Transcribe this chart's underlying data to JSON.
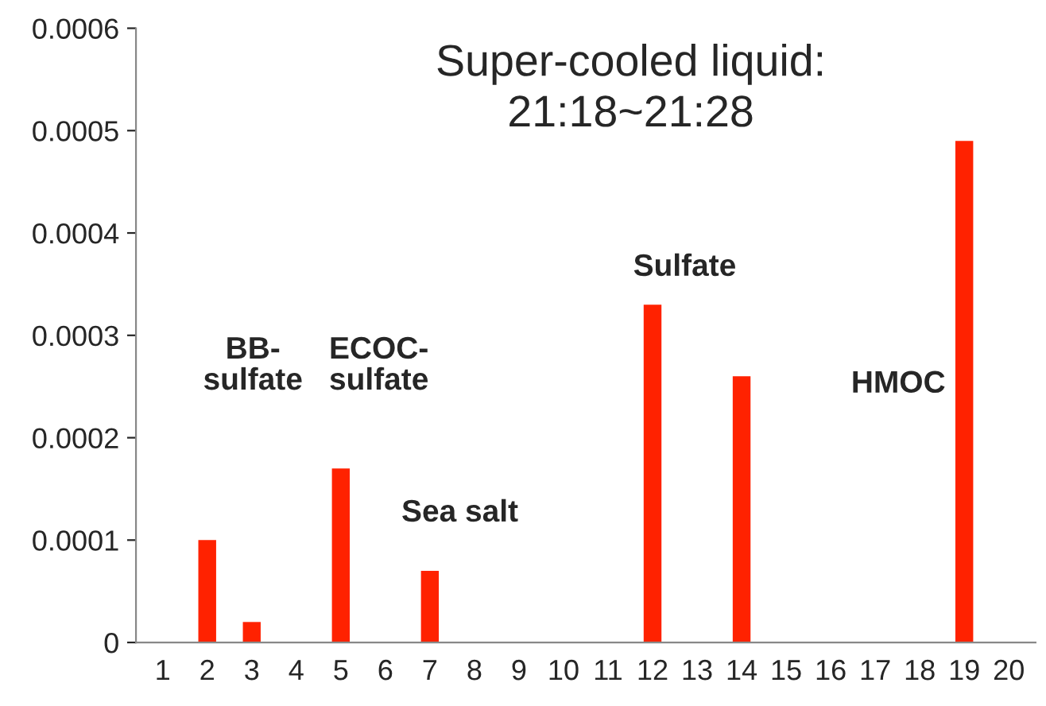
{
  "chart_data": {
    "type": "bar",
    "title": "Super-cooled liquid:\n21:18~21:28",
    "categories": [
      "1",
      "2",
      "3",
      "4",
      "5",
      "6",
      "7",
      "8",
      "9",
      "10",
      "11",
      "12",
      "13",
      "14",
      "15",
      "16",
      "17",
      "18",
      "19",
      "20"
    ],
    "values": [
      null,
      0.0001,
      2e-05,
      null,
      0.00017,
      null,
      7e-05,
      null,
      null,
      null,
      null,
      0.00033,
      null,
      0.00026,
      null,
      null,
      null,
      null,
      0.00049,
      null
    ],
    "color": "#ff2200",
    "ylim": [
      0,
      0.0006
    ],
    "yticks": [
      0,
      0.0001,
      0.0002,
      0.0003,
      0.0004,
      0.0005,
      0.0006
    ],
    "annotations": [
      "BB-\nsulfate",
      "ECOC-\nsulfate",
      "Sea salt",
      "Sulfate",
      "HMOC"
    ],
    "grid": false,
    "legend": false
  }
}
